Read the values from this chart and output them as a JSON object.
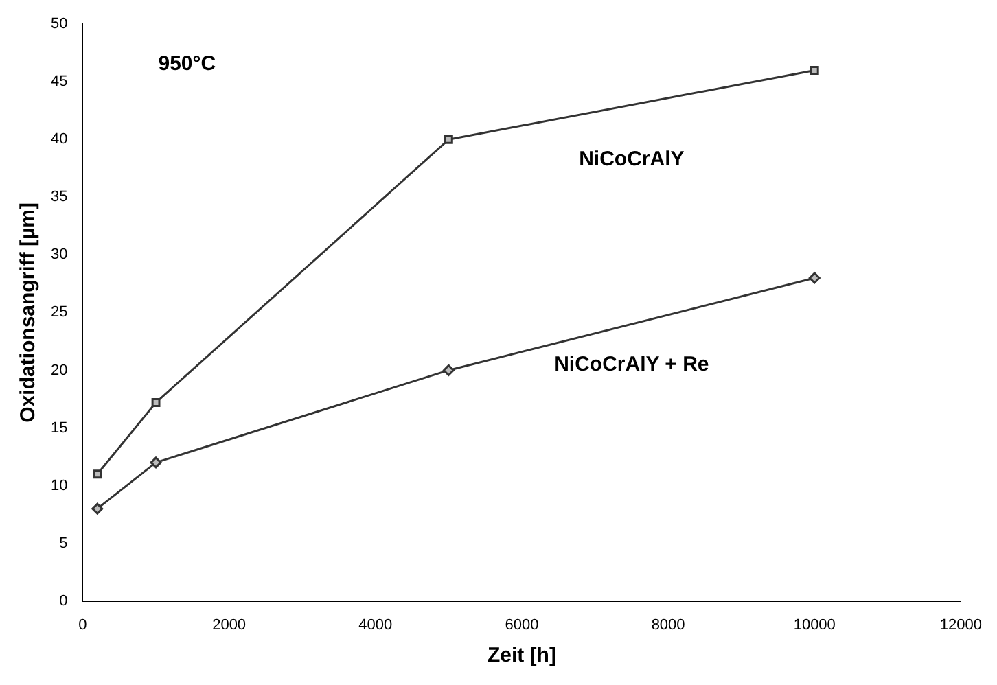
{
  "chart_data": {
    "type": "line",
    "xlabel": "Zeit [h]",
    "ylabel": "Oxidationsangriff [µm]",
    "annotations": [
      "950°C"
    ],
    "x": [
      200,
      1000,
      5000,
      10000
    ],
    "series": [
      {
        "name": "NiCoCrAlY",
        "color": "#333333",
        "marker": "square",
        "values": [
          11,
          17.2,
          40,
          46
        ]
      },
      {
        "name": "NiCoCrAlY + Re",
        "color": "#333333",
        "marker": "diamond",
        "values": [
          8,
          12,
          20,
          28
        ]
      }
    ],
    "xlim": [
      0,
      12000
    ],
    "xticks": [
      0,
      2000,
      4000,
      6000,
      8000,
      10000,
      12000
    ],
    "ylim": [
      0,
      50
    ],
    "yticks": [
      0,
      5,
      10,
      15,
      20,
      25,
      30,
      35,
      40,
      45,
      50
    ],
    "grid": false,
    "legend": false,
    "line_style": "solid"
  }
}
